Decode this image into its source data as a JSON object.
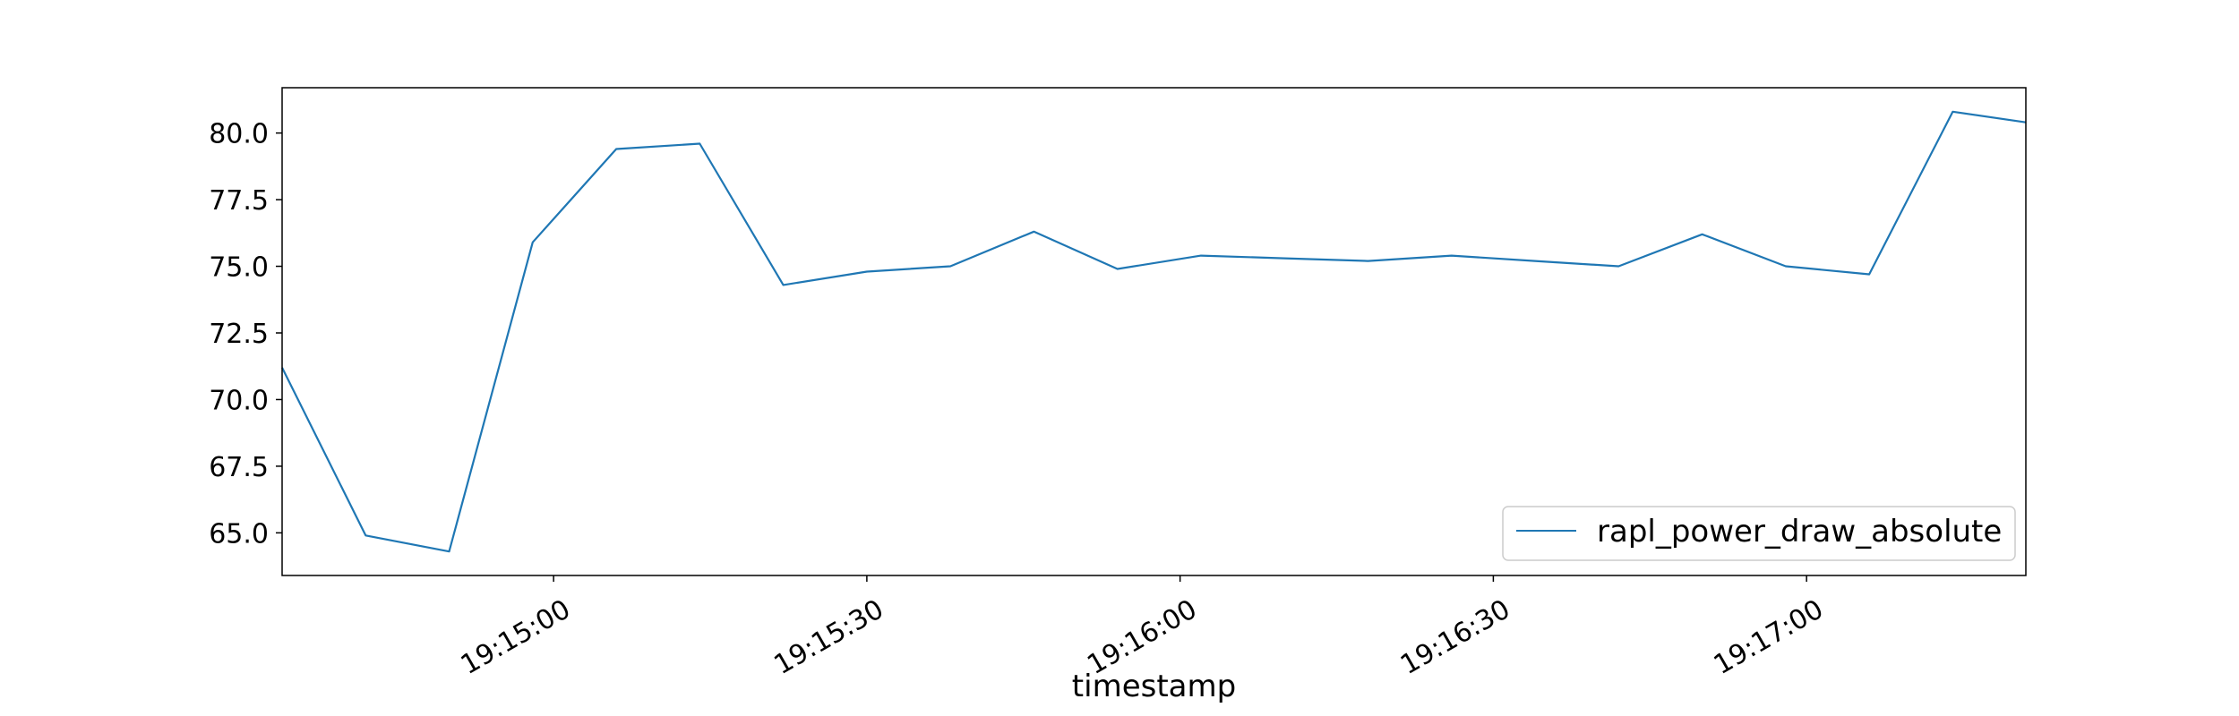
{
  "chart_data": {
    "type": "line",
    "xlabel": "timestamp",
    "ylabel": "",
    "ylim": [
      63.4,
      81.7
    ],
    "xlim": [
      "19:14:34",
      "19:17:21"
    ],
    "grid": false,
    "legend_position": "lower-right",
    "x_ticks": [
      "19:15:00",
      "19:15:30",
      "19:16:00",
      "19:16:30",
      "19:17:00"
    ],
    "y_ticks": [
      "65.0",
      "67.5",
      "70.0",
      "72.5",
      "75.0",
      "77.5",
      "80.0"
    ],
    "series": [
      {
        "name": "rapl_power_draw_absolute",
        "color": "#1f77b4",
        "x": [
          "19:14:34",
          "19:14:42",
          "19:14:50",
          "19:14:58",
          "19:15:06",
          "19:15:14",
          "19:15:22",
          "19:15:30",
          "19:15:38",
          "19:15:46",
          "19:15:54",
          "19:16:02",
          "19:16:10",
          "19:16:18",
          "19:16:26",
          "19:16:34",
          "19:16:42",
          "19:16:50",
          "19:16:58",
          "19:17:06",
          "19:17:14",
          "19:17:21"
        ],
        "y": [
          71.2,
          64.9,
          64.3,
          75.9,
          79.4,
          79.6,
          74.3,
          74.8,
          75.0,
          76.3,
          74.9,
          75.4,
          75.3,
          75.2,
          75.4,
          75.2,
          75.0,
          76.2,
          75.0,
          74.7,
          80.8,
          80.4
        ]
      }
    ]
  }
}
